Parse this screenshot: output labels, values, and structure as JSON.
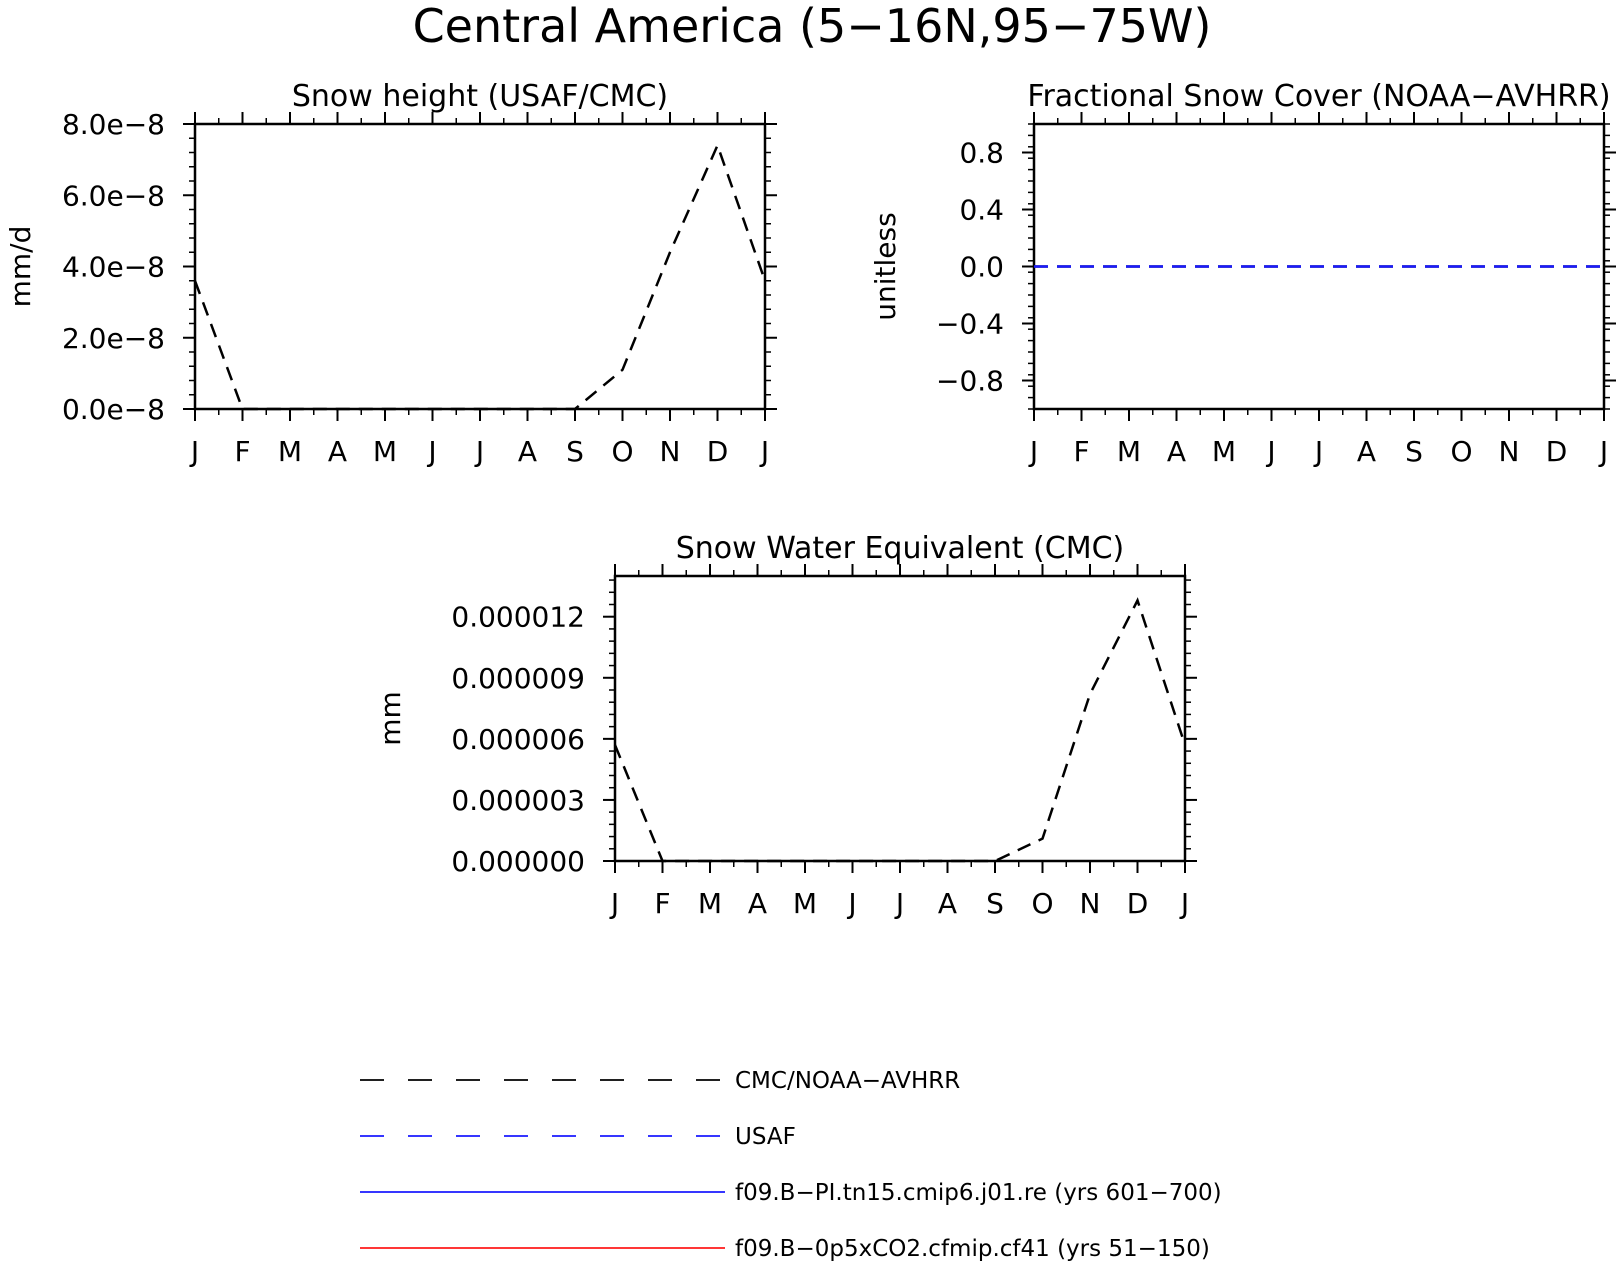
{
  "figure": {
    "title": "Central America (5−16N,95−75W)"
  },
  "chart_data": [
    {
      "type": "line",
      "title": "Snow height (USAF/CMC)",
      "ylabel": "mm/d",
      "xlabel": "",
      "x": [
        "J",
        "F",
        "M",
        "A",
        "M",
        "J",
        "J",
        "A",
        "S",
        "O",
        "N",
        "D",
        "J"
      ],
      "ylim": [
        0,
        8e-08
      ],
      "yticks": [
        0,
        2e-08,
        4e-08,
        6e-08,
        8e-08
      ],
      "ytick_labels": [
        "0.0e−8",
        "2.0e−8",
        "4.0e−8",
        "6.0e−8",
        "8.0e−8"
      ],
      "series": [
        {
          "name": "CMC/NOAA−AVHRR",
          "style": "dashed",
          "color": "#000000",
          "values": [
            3.6e-08,
            0,
            0,
            0,
            0,
            0,
            0,
            0,
            0,
            1.1e-08,
            4.4e-08,
            7.4e-08,
            3.6e-08
          ]
        }
      ]
    },
    {
      "type": "line",
      "title": "Fractional Snow Cover (NOAA−AVHRR)",
      "ylabel": "unitless",
      "xlabel": "",
      "x": [
        "J",
        "F",
        "M",
        "A",
        "M",
        "J",
        "J",
        "A",
        "S",
        "O",
        "N",
        "D",
        "J"
      ],
      "ylim": [
        -1,
        1
      ],
      "yticks": [
        -0.8,
        -0.4,
        0,
        0.4,
        0.8
      ],
      "ytick_labels": [
        "−0.8",
        "−0.4",
        "0.0",
        "0.4",
        "0.8"
      ],
      "series": [
        {
          "name": "CMC/NOAA−AVHRR",
          "style": "dashed",
          "color": "#000000",
          "values": [
            0,
            0,
            0,
            0,
            0,
            0,
            0,
            0,
            0,
            0,
            0,
            0,
            0
          ]
        },
        {
          "name": "USAF",
          "style": "dashed",
          "color": "#1a1aff",
          "values": [
            0,
            0,
            0,
            0,
            0,
            0,
            0,
            0,
            0,
            0,
            0,
            0,
            0
          ]
        }
      ]
    },
    {
      "type": "line",
      "title": "Snow Water Equivalent (CMC)",
      "ylabel": "mm",
      "xlabel": "",
      "x": [
        "J",
        "F",
        "M",
        "A",
        "M",
        "J",
        "J",
        "A",
        "S",
        "O",
        "N",
        "D",
        "J"
      ],
      "ylim": [
        0,
        1.4e-05
      ],
      "yticks": [
        0,
        3e-06,
        6e-06,
        9e-06,
        1.2e-05
      ],
      "ytick_labels": [
        "0.000000",
        "0.000003",
        "0.000006",
        "0.000009",
        "0.000012"
      ],
      "series": [
        {
          "name": "CMC/NOAA−AVHRR",
          "style": "dashed",
          "color": "#000000",
          "values": [
            5.7e-06,
            0,
            0,
            0,
            0,
            0,
            0,
            0,
            0,
            1.1e-06,
            8.2e-06,
            1.28e-05,
            5.7e-06
          ]
        }
      ]
    }
  ],
  "legend": [
    {
      "label": "CMC/NOAA−AVHRR",
      "style": "dashed",
      "color": "#000000"
    },
    {
      "label": "USAF",
      "style": "dashed",
      "color": "#1a1aff"
    },
    {
      "label": "f09.B−PI.tn15.cmip6.j01.re (yrs 601−700)",
      "style": "solid",
      "color": "#1a1aff"
    },
    {
      "label": "f09.B−0p5xCO2.cfmip.cf41 (yrs 51−150)",
      "style": "solid",
      "color": "#ff1a1a"
    }
  ]
}
